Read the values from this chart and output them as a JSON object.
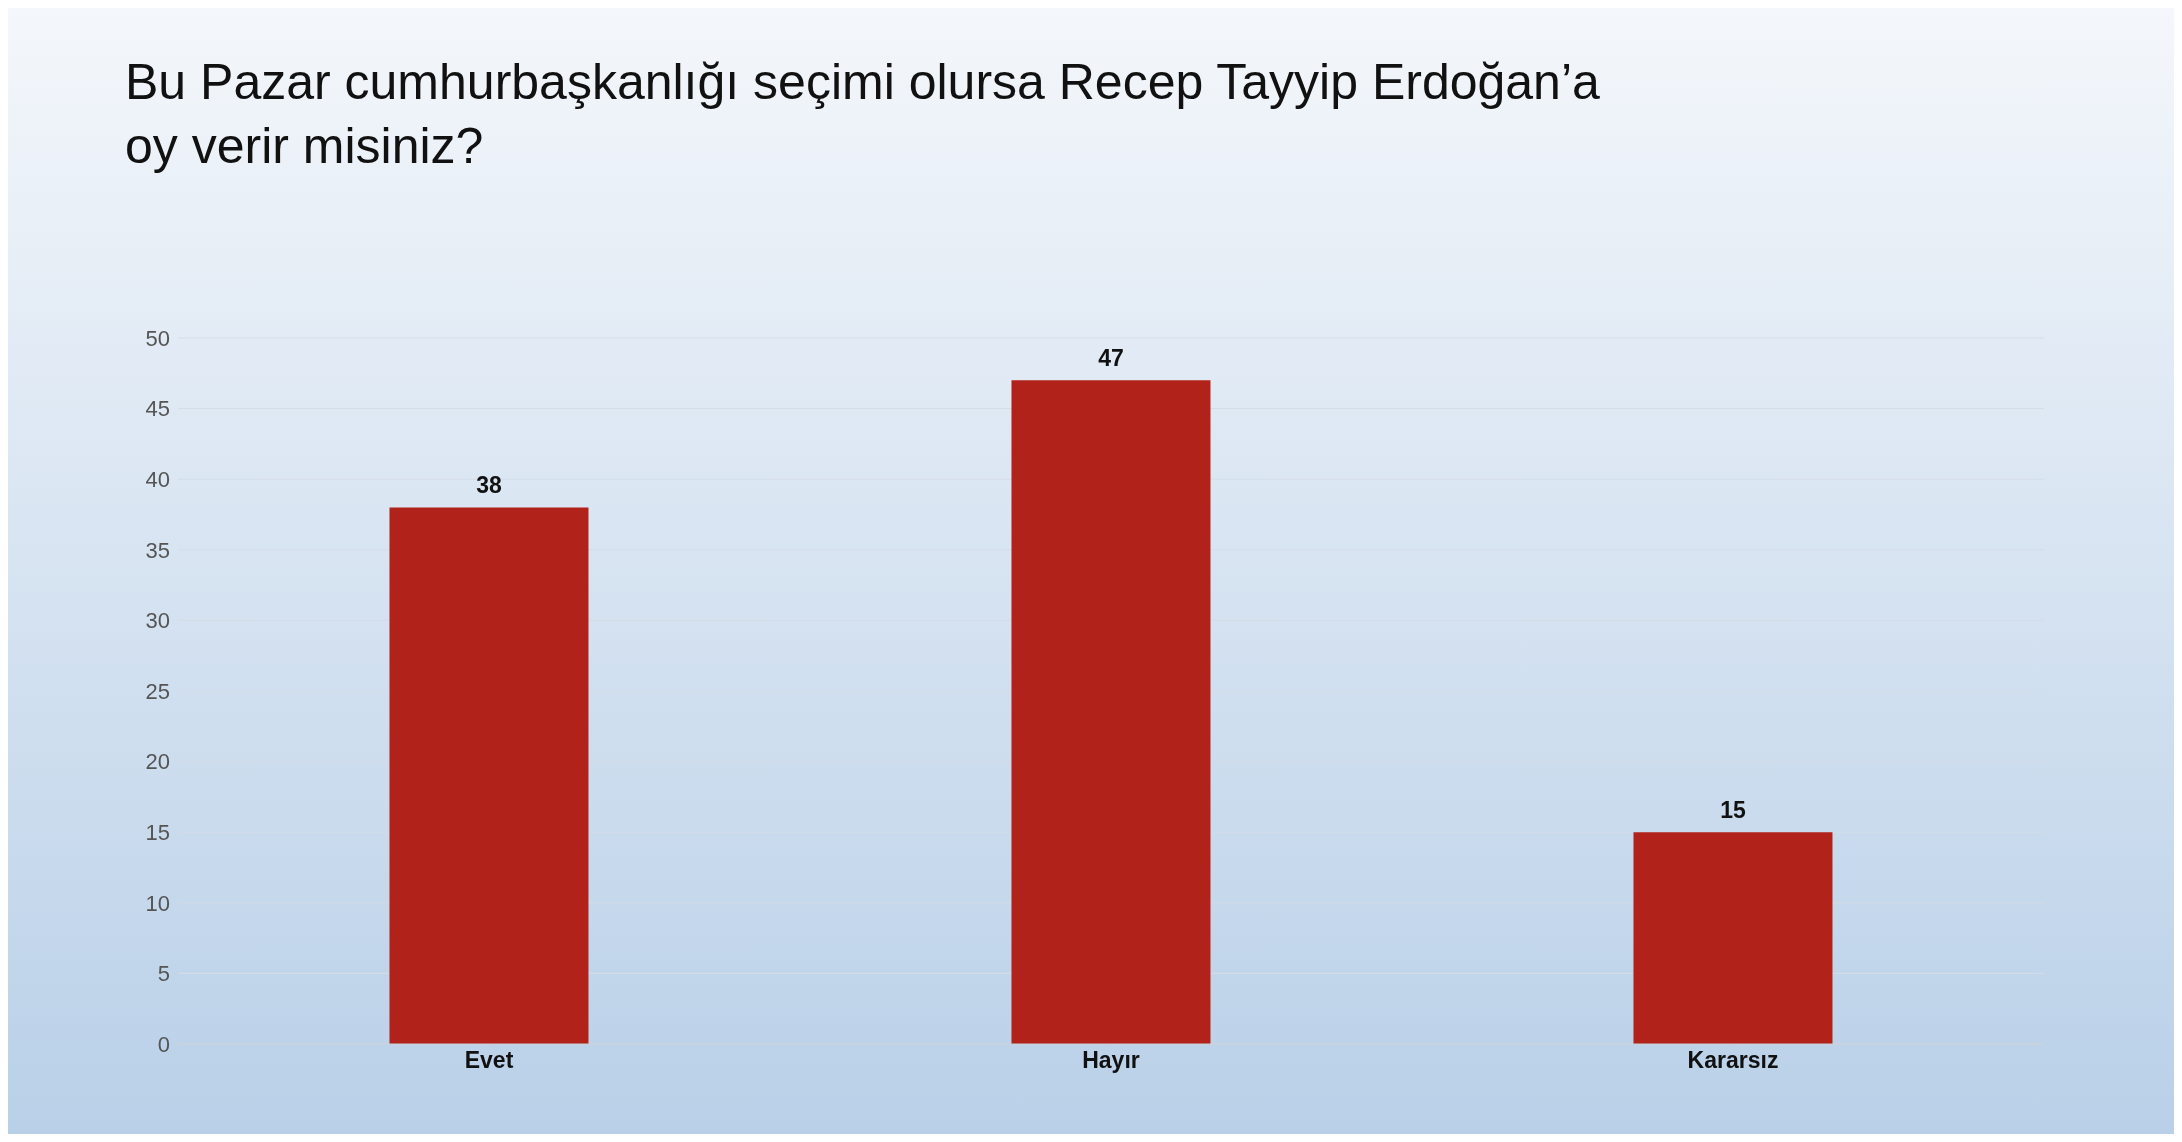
{
  "chart_data": {
    "type": "bar",
    "title": "Bu Pazar cumhurbaşkanlığı seçimi olursa Recep Tayyip Erdoğan’a\noy verir misiniz?",
    "categories": [
      "Evet",
      "Hayır",
      "Kararsız"
    ],
    "values": [
      38,
      47,
      15
    ],
    "color": "#b0221a",
    "ylim": [
      0,
      50
    ],
    "yticks": [
      0,
      5,
      10,
      15,
      20,
      25,
      30,
      35,
      40,
      45,
      50
    ],
    "grid": "y",
    "data_labels": true
  }
}
